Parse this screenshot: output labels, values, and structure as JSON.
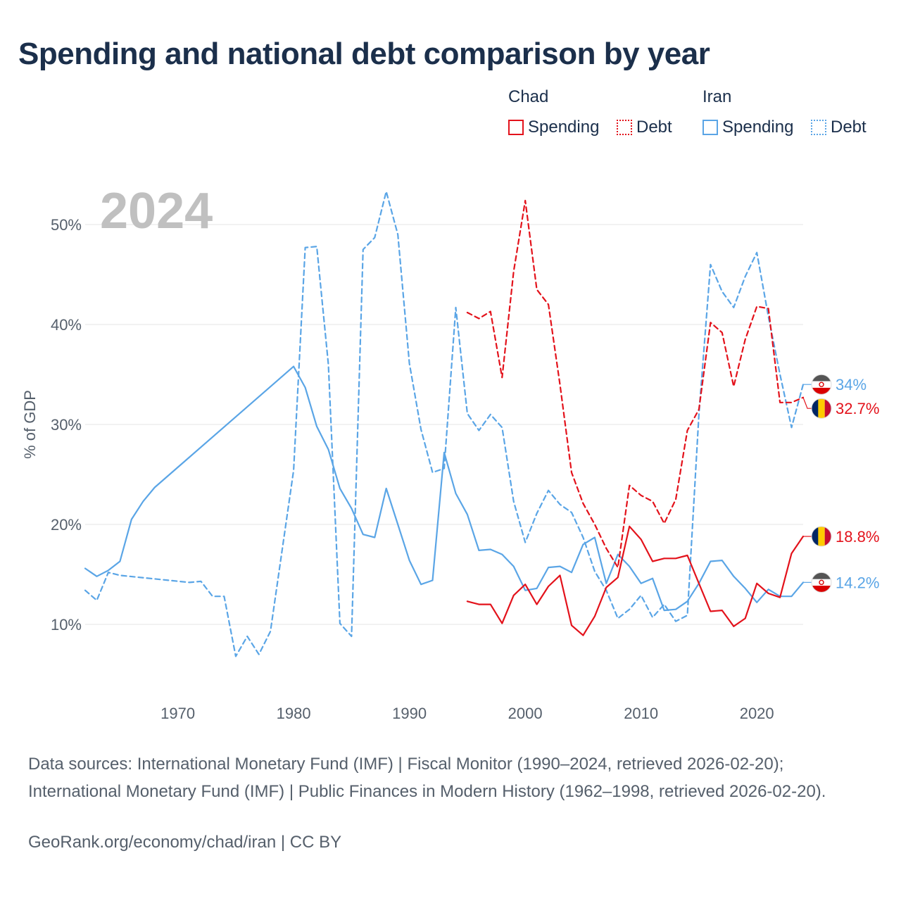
{
  "title": "Spending and national debt comparison by year",
  "legend": {
    "groups": [
      {
        "country": "Chad",
        "color": "#e3121b",
        "spending_label": "Spending",
        "debt_label": "Debt"
      },
      {
        "country": "Iran",
        "color": "#5aa5e6",
        "spending_label": "Spending",
        "debt_label": "Debt"
      }
    ]
  },
  "chart_data": {
    "type": "line",
    "title": "Spending and national debt comparison by year",
    "year_watermark": "2024",
    "ylabel": "% of GDP",
    "xlabel": "",
    "xlim": [
      1962,
      2024
    ],
    "ylim": [
      5,
      55
    ],
    "y_ticks": [
      10,
      20,
      30,
      40,
      50
    ],
    "y_tick_labels": [
      "10%",
      "20%",
      "30%",
      "40%",
      "50%"
    ],
    "x_ticks": [
      1970,
      1980,
      1990,
      2000,
      2010,
      2020
    ],
    "x_tick_labels": [
      "1970",
      "1980",
      "1990",
      "2000",
      "2010",
      "2020"
    ],
    "grid": true,
    "series": [
      {
        "name": "Iran Spending",
        "country": "Iran",
        "metric": "Spending",
        "style": "solid",
        "color": "#5aa5e6",
        "end_label": "14.2%",
        "points": [
          [
            1962,
            15.6
          ],
          [
            1963,
            14.8
          ],
          [
            1964,
            15.4
          ],
          [
            1965,
            16.3
          ],
          [
            1966,
            20.5
          ],
          [
            1967,
            22.3
          ],
          [
            1968,
            23.7
          ],
          [
            1980,
            35.8
          ],
          [
            1981,
            33.7
          ],
          [
            1982,
            29.8
          ],
          [
            1983,
            27.5
          ],
          [
            1984,
            23.6
          ],
          [
            1985,
            21.6
          ],
          [
            1986,
            19.0
          ],
          [
            1987,
            18.7
          ],
          [
            1988,
            23.6
          ],
          [
            1989,
            20.0
          ],
          [
            1990,
            16.4
          ],
          [
            1991,
            14.0
          ],
          [
            1992,
            14.4
          ],
          [
            1993,
            27.2
          ],
          [
            1994,
            23.1
          ],
          [
            1995,
            21.0
          ],
          [
            1996,
            17.4
          ],
          [
            1997,
            17.5
          ],
          [
            1998,
            17.0
          ],
          [
            1999,
            15.8
          ],
          [
            2000,
            13.4
          ],
          [
            2001,
            13.6
          ],
          [
            2002,
            15.7
          ],
          [
            2003,
            15.8
          ],
          [
            2004,
            15.2
          ],
          [
            2005,
            18.0
          ],
          [
            2006,
            18.7
          ],
          [
            2007,
            14.1
          ],
          [
            2008,
            17.0
          ],
          [
            2009,
            15.8
          ],
          [
            2010,
            14.1
          ],
          [
            2011,
            14.6
          ],
          [
            2012,
            11.4
          ],
          [
            2013,
            11.5
          ],
          [
            2014,
            12.3
          ],
          [
            2015,
            14.1
          ],
          [
            2016,
            16.3
          ],
          [
            2017,
            16.4
          ],
          [
            2018,
            14.8
          ],
          [
            2019,
            13.6
          ],
          [
            2020,
            12.2
          ],
          [
            2021,
            13.5
          ],
          [
            2022,
            12.8
          ],
          [
            2023,
            12.8
          ],
          [
            2024,
            14.2
          ]
        ]
      },
      {
        "name": "Iran Debt",
        "country": "Iran",
        "metric": "Debt",
        "style": "dashed",
        "color": "#5aa5e6",
        "end_label": "34%",
        "points": [
          [
            1962,
            13.4
          ],
          [
            1963,
            12.4
          ],
          [
            1964,
            15.2
          ],
          [
            1965,
            14.9
          ],
          [
            1971,
            14.2
          ],
          [
            1972,
            14.3
          ],
          [
            1973,
            12.8
          ],
          [
            1974,
            12.8
          ],
          [
            1975,
            6.8
          ],
          [
            1976,
            8.8
          ],
          [
            1977,
            7.0
          ],
          [
            1978,
            9.3
          ],
          [
            1980,
            25.4
          ],
          [
            1981,
            47.7
          ],
          [
            1982,
            47.8
          ],
          [
            1983,
            36.0
          ],
          [
            1984,
            10.1
          ],
          [
            1985,
            8.8
          ],
          [
            1986,
            47.5
          ],
          [
            1987,
            48.7
          ],
          [
            1988,
            53.3
          ],
          [
            1989,
            49.0
          ],
          [
            1990,
            36.1
          ],
          [
            1991,
            29.5
          ],
          [
            1992,
            25.2
          ],
          [
            1993,
            25.6
          ],
          [
            1994,
            41.7
          ],
          [
            1995,
            31.1
          ],
          [
            1996,
            29.4
          ],
          [
            1997,
            31.0
          ],
          [
            1998,
            29.7
          ],
          [
            1999,
            22.3
          ],
          [
            2000,
            18.2
          ],
          [
            2001,
            21.1
          ],
          [
            2002,
            23.4
          ],
          [
            2003,
            22.0
          ],
          [
            2004,
            21.2
          ],
          [
            2005,
            18.7
          ],
          [
            2006,
            15.3
          ],
          [
            2007,
            13.4
          ],
          [
            2008,
            10.6
          ],
          [
            2009,
            11.5
          ],
          [
            2010,
            12.9
          ],
          [
            2011,
            10.7
          ],
          [
            2012,
            12.0
          ],
          [
            2013,
            10.3
          ],
          [
            2014,
            10.9
          ],
          [
            2015,
            31.0
          ],
          [
            2016,
            46.0
          ],
          [
            2017,
            43.3
          ],
          [
            2018,
            41.7
          ],
          [
            2019,
            44.8
          ],
          [
            2020,
            47.2
          ],
          [
            2021,
            40.8
          ],
          [
            2022,
            35.0
          ],
          [
            2023,
            29.7
          ],
          [
            2024,
            34.0
          ]
        ]
      },
      {
        "name": "Chad Spending",
        "country": "Chad",
        "metric": "Spending",
        "style": "solid",
        "color": "#e3121b",
        "end_label": "18.8%",
        "points": [
          [
            1995,
            12.3
          ],
          [
            1996,
            12.0
          ],
          [
            1997,
            12.0
          ],
          [
            1998,
            10.1
          ],
          [
            1999,
            12.9
          ],
          [
            2000,
            14.0
          ],
          [
            2001,
            12.0
          ],
          [
            2002,
            13.8
          ],
          [
            2003,
            14.9
          ],
          [
            2004,
            9.9
          ],
          [
            2005,
            8.9
          ],
          [
            2006,
            10.8
          ],
          [
            2007,
            13.7
          ],
          [
            2008,
            14.7
          ],
          [
            2009,
            19.8
          ],
          [
            2010,
            18.5
          ],
          [
            2011,
            16.3
          ],
          [
            2012,
            16.6
          ],
          [
            2013,
            16.6
          ],
          [
            2014,
            16.9
          ],
          [
            2015,
            14.1
          ],
          [
            2016,
            11.3
          ],
          [
            2017,
            11.4
          ],
          [
            2018,
            9.8
          ],
          [
            2019,
            10.6
          ],
          [
            2020,
            14.1
          ],
          [
            2021,
            13.1
          ],
          [
            2022,
            12.7
          ],
          [
            2023,
            17.1
          ],
          [
            2024,
            18.8
          ]
        ]
      },
      {
        "name": "Chad Debt",
        "country": "Chad",
        "metric": "Debt",
        "style": "dashed",
        "color": "#e3121b",
        "end_label": "32.7%",
        "points": [
          [
            1995,
            41.2
          ],
          [
            1996,
            40.6
          ],
          [
            1997,
            41.3
          ],
          [
            1998,
            34.7
          ],
          [
            1999,
            45.3
          ],
          [
            2000,
            52.4
          ],
          [
            2001,
            43.5
          ],
          [
            2002,
            42.0
          ],
          [
            2003,
            34.0
          ],
          [
            2004,
            25.2
          ],
          [
            2005,
            22.1
          ],
          [
            2006,
            20.0
          ],
          [
            2007,
            17.6
          ],
          [
            2008,
            15.7
          ],
          [
            2009,
            23.9
          ],
          [
            2010,
            22.9
          ],
          [
            2011,
            22.3
          ],
          [
            2012,
            20.1
          ],
          [
            2013,
            22.5
          ],
          [
            2014,
            29.4
          ],
          [
            2015,
            31.5
          ],
          [
            2016,
            40.2
          ],
          [
            2017,
            39.2
          ],
          [
            2018,
            33.8
          ],
          [
            2019,
            38.5
          ],
          [
            2020,
            41.8
          ],
          [
            2021,
            41.6
          ],
          [
            2022,
            32.2
          ],
          [
            2023,
            32.2
          ],
          [
            2024,
            32.7
          ]
        ]
      }
    ]
  },
  "footer": {
    "sources": "Data sources: International Monetary Fund (IMF) | Fiscal Monitor (1990–2024, retrieved 2026-02-20); International Monetary Fund (IMF) | Public Finances in Modern History (1962–1998, retrieved 2026-02-20).",
    "credit": "GeoRank.org/economy/chad/iran | CC BY"
  }
}
